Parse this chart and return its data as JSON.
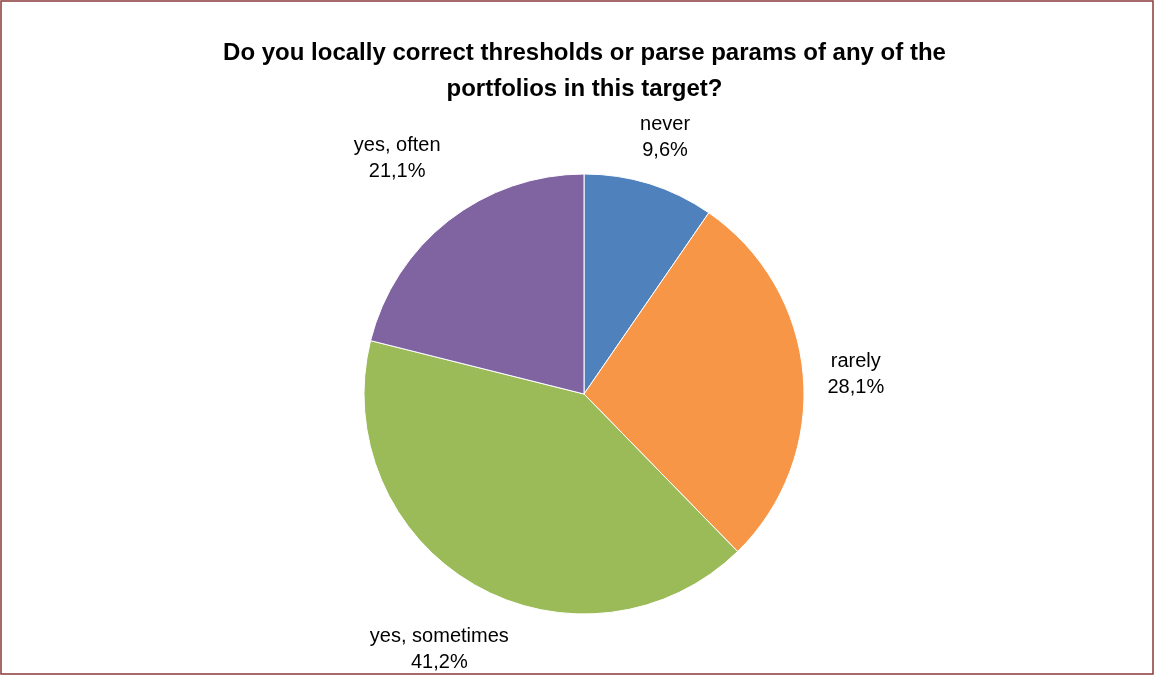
{
  "chart_data": {
    "type": "pie",
    "title": "Do you locally correct thresholds or parse params of any of the portfolios in this target?",
    "categories": [
      "never",
      "rarely",
      "yes, sometimes",
      "yes, often"
    ],
    "values": [
      9.6,
      28.1,
      41.2,
      21.1
    ],
    "value_labels": [
      "9,6%",
      "28,1%",
      "41,2%",
      "21,1%"
    ],
    "colors": [
      "#4f81bd",
      "#f79646",
      "#9bbb59",
      "#8064a2"
    ]
  }
}
